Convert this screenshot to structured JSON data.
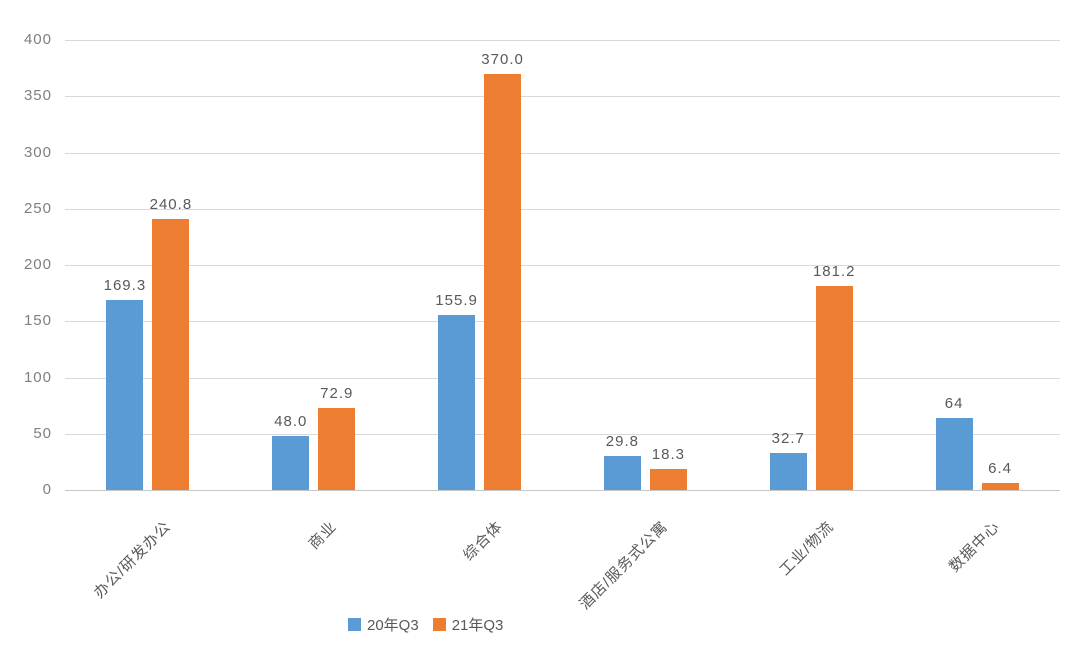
{
  "chart_data": {
    "type": "bar",
    "title": "",
    "xlabel": "",
    "ylabel": "",
    "categories": [
      "办公/研发办公",
      "商业",
      "综合体",
      "酒店/服务式公寓",
      "工业/物流",
      "数据中心"
    ],
    "series": [
      {
        "name": "20年Q3",
        "color": "#5B9BD5",
        "values": [
          169.3,
          48.0,
          155.9,
          29.8,
          32.7,
          64
        ],
        "labels": [
          "169.3",
          "48.0",
          "155.9",
          "29.8",
          "32.7",
          "64"
        ]
      },
      {
        "name": "21年Q3",
        "color": "#ED7D31",
        "values": [
          240.8,
          72.9,
          370.0,
          18.3,
          181.2,
          6.4
        ],
        "labels": [
          "240.8",
          "72.9",
          "370.0",
          "18.3",
          "181.2",
          "6.4"
        ]
      }
    ],
    "ylim": [
      0,
      400
    ],
    "ytick_step": 50,
    "ytick_labels": [
      "0",
      "50",
      "100",
      "150",
      "200",
      "250",
      "300",
      "350",
      "400"
    ],
    "grid": true,
    "legend_position": "bottom",
    "colors": {
      "gridline": "#d9d9d9",
      "axis_text": "#7f7f7f",
      "data_label_text": "#595959",
      "series1": "#5B9BD5",
      "series2": "#ED7D31"
    }
  }
}
